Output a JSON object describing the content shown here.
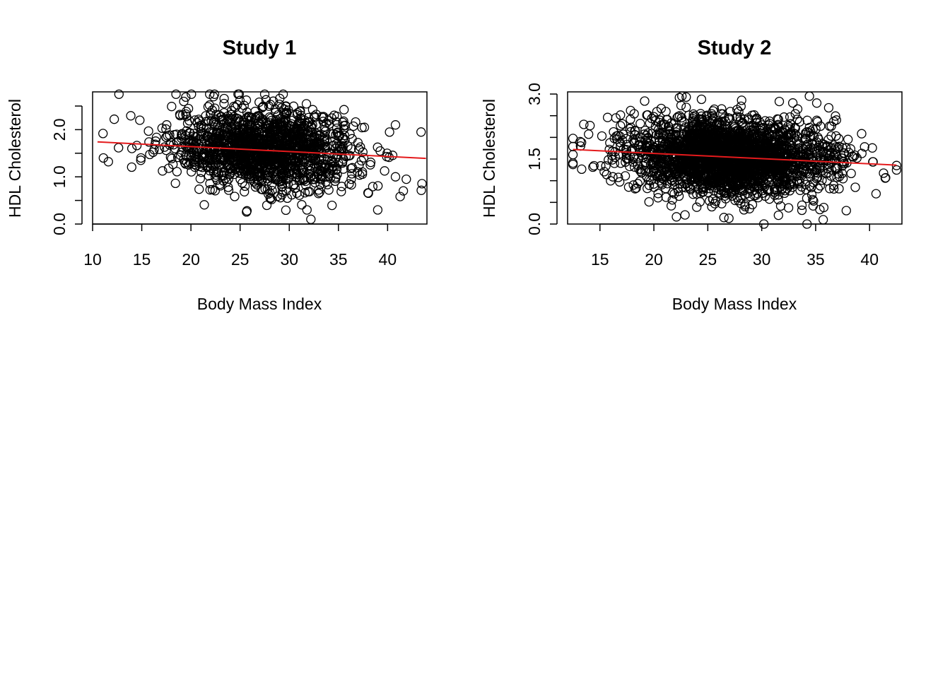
{
  "chart_data": [
    {
      "type": "scatter",
      "title": "Study 1",
      "xlabel": "Body Mass Index",
      "ylabel": "HDL Cholesterol",
      "xlim": [
        10,
        44
      ],
      "ylim": [
        0,
        2.8
      ],
      "xticks": [
        "10",
        "15",
        "20",
        "25",
        "30",
        "35",
        "40"
      ],
      "yticks": [
        "0.0",
        "",
        "1.0",
        "",
        "2.0",
        ""
      ],
      "ytick_values": [
        0,
        0.5,
        1.0,
        1.5,
        2.0,
        2.5
      ],
      "point_count_approx": 1500,
      "cloud": {
        "x_mean": 27.5,
        "x_sd": 4.7,
        "y_mean": 1.6,
        "y_sd": 0.42,
        "x_min": 11,
        "x_max": 43.5,
        "y_min": 0.1,
        "y_max": 2.75
      },
      "outlier_points": [
        {
          "x": 11.1,
          "y": 1.4
        },
        {
          "x": 11.6,
          "y": 1.32
        },
        {
          "x": 12.2,
          "y": 2.22
        },
        {
          "x": 14.0,
          "y": 1.6
        },
        {
          "x": 14.8,
          "y": 2.2
        },
        {
          "x": 14.9,
          "y": 1.35
        },
        {
          "x": 43.4,
          "y": 1.95
        },
        {
          "x": 41.9,
          "y": 0.95
        },
        {
          "x": 40.8,
          "y": 1.0
        },
        {
          "x": 40.8,
          "y": 2.1
        },
        {
          "x": 39.0,
          "y": 0.3
        },
        {
          "x": 32.2,
          "y": 0.1
        },
        {
          "x": 31.8,
          "y": 0.3
        },
        {
          "x": 25.7,
          "y": 0.28
        },
        {
          "x": 22.3,
          "y": 2.7
        }
      ],
      "regression_line": {
        "x": [
          10.5,
          43.9
        ],
        "y": [
          1.74,
          1.39
        ],
        "color": "#e41a1c"
      }
    },
    {
      "type": "scatter",
      "title": "Study 2",
      "xlabel": "Body Mass Index",
      "ylabel": "HDL Cholesterol",
      "xlim": [
        12,
        43
      ],
      "ylim": [
        0,
        3.05
      ],
      "xticks": [
        "15",
        "20",
        "25",
        "30",
        "35",
        "40"
      ],
      "yticks": [
        "0.0",
        "",
        "",
        "1.5",
        "",
        "",
        "3.0"
      ],
      "ytick_values": [
        0,
        0.5,
        1.0,
        1.5,
        2.0,
        2.5,
        3.0
      ],
      "point_count_approx": 2500,
      "cloud": {
        "x_mean": 27.0,
        "x_sd": 4.6,
        "y_mean": 1.55,
        "y_sd": 0.45,
        "x_min": 12.5,
        "x_max": 42.5,
        "y_min": 0.0,
        "y_max": 2.95
      },
      "outlier_points": [
        {
          "x": 12.5,
          "y": 1.6
        },
        {
          "x": 13.2,
          "y": 1.8
        },
        {
          "x": 13.5,
          "y": 2.3
        },
        {
          "x": 42.5,
          "y": 1.35
        },
        {
          "x": 40.6,
          "y": 0.7
        },
        {
          "x": 34.2,
          "y": 0.0
        },
        {
          "x": 30.2,
          "y": 0.0
        },
        {
          "x": 22.6,
          "y": 2.95
        },
        {
          "x": 23.0,
          "y": 2.93
        },
        {
          "x": 26.5,
          "y": 0.15
        },
        {
          "x": 35.7,
          "y": 0.1
        }
      ],
      "regression_line": {
        "x": [
          12.5,
          42.5
        ],
        "y": [
          1.72,
          1.36
        ],
        "color": "#e41a1c"
      }
    }
  ]
}
